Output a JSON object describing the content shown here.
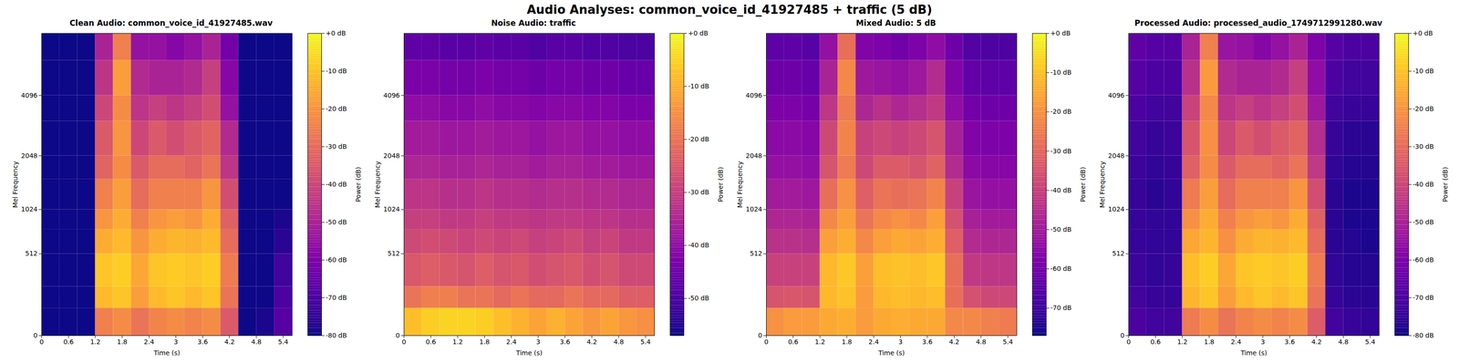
{
  "title": "Audio Analyses: common_voice_id_41927485 + traffic (5 dB)",
  "chart_data": [
    {
      "type": "heatmap",
      "title": "Clean Audio: common_voice_id_41927485.wav",
      "x_label": "Time (s)",
      "y_label": "Mel Frequency",
      "x": [
        0,
        0.4,
        0.8,
        1.2,
        1.6,
        2.0,
        2.4,
        2.8,
        3.2,
        3.6,
        4.0,
        4.4,
        4.8,
        5.2,
        5.6
      ],
      "y": [
        0,
        128,
        256,
        512,
        768,
        1024,
        1536,
        2048,
        3072,
        4096,
        6000,
        8000
      ],
      "xlim": [
        0,
        5.6
      ],
      "ylim": [
        0,
        8000
      ],
      "xticks": [
        0,
        0.6,
        1.2,
        1.8,
        2.4,
        3,
        3.6,
        4.2,
        4.8,
        5.4
      ],
      "yticks": [
        0,
        512,
        1024,
        2048,
        4096
      ],
      "values": [
        [
          -80,
          -80,
          -80,
          -25,
          -22,
          -28,
          -24,
          -22,
          -24,
          -22,
          -35,
          -80,
          -78,
          -68
        ],
        [
          -80,
          -80,
          -80,
          -12,
          -10,
          -18,
          -12,
          -10,
          -12,
          -10,
          -28,
          -80,
          -80,
          -70
        ],
        [
          -80,
          -80,
          -80,
          -10,
          -8,
          -16,
          -10,
          -9,
          -10,
          -8,
          -26,
          -80,
          -80,
          -72
        ],
        [
          -80,
          -80,
          -80,
          -15,
          -12,
          -20,
          -15,
          -13,
          -14,
          -12,
          -30,
          -80,
          -80,
          -76
        ],
        [
          -80,
          -80,
          -80,
          -20,
          -15,
          -25,
          -20,
          -18,
          -20,
          -15,
          -33,
          -80,
          -80,
          -78
        ],
        [
          -80,
          -80,
          -80,
          -25,
          -18,
          -30,
          -25,
          -25,
          -25,
          -20,
          -38,
          -80,
          -80,
          -80
        ],
        [
          -80,
          -80,
          -80,
          -32,
          -22,
          -35,
          -30,
          -30,
          -32,
          -28,
          -45,
          -80,
          -80,
          -80
        ],
        [
          -80,
          -80,
          -80,
          -35,
          -20,
          -40,
          -35,
          -38,
          -35,
          -32,
          -48,
          -80,
          -80,
          -80
        ],
        [
          -80,
          -80,
          -80,
          -40,
          -22,
          -45,
          -42,
          -45,
          -42,
          -38,
          -55,
          -80,
          -80,
          -80
        ],
        [
          -80,
          -80,
          -80,
          -45,
          -18,
          -48,
          -50,
          -50,
          -48,
          -42,
          -58,
          -80,
          -80,
          -80
        ],
        [
          -80,
          -80,
          -80,
          -50,
          -25,
          -55,
          -55,
          -58,
          -55,
          -50,
          -62,
          -80,
          -80,
          -80
        ]
      ],
      "colorbar": {
        "label": "Power (dB)",
        "range": [
          -80,
          0
        ],
        "ticks": [
          {
            "value": 0,
            "label": "+0 dB"
          },
          {
            "value": -10,
            "label": "-10 dB"
          },
          {
            "value": -20,
            "label": "-20 dB"
          },
          {
            "value": -30,
            "label": "-30 dB"
          },
          {
            "value": -40,
            "label": "-40 dB"
          },
          {
            "value": -50,
            "label": "-50 dB"
          },
          {
            "value": -60,
            "label": "-60 dB"
          },
          {
            "value": -70,
            "label": "-70 dB"
          },
          {
            "value": -80,
            "label": "-80 dB"
          }
        ]
      }
    },
    {
      "type": "heatmap",
      "title": "Noise Audio: traffic",
      "x_label": "Time (s)",
      "y_label": "Mel Frequency",
      "x": [
        0,
        0.4,
        0.8,
        1.2,
        1.6,
        2.0,
        2.4,
        2.8,
        3.2,
        3.6,
        4.0,
        4.4,
        4.8,
        5.2,
        5.6
      ],
      "y": [
        0,
        128,
        256,
        512,
        768,
        1024,
        1536,
        2048,
        3072,
        4096,
        6000,
        8000
      ],
      "xlim": [
        0,
        5.6
      ],
      "ylim": [
        0,
        8000
      ],
      "xticks": [
        0,
        0.6,
        1.2,
        1.8,
        2.4,
        3,
        3.6,
        4.2,
        4.8,
        5.4
      ],
      "yticks": [
        0,
        512,
        1024,
        2048,
        4096
      ],
      "values": [
        [
          -8,
          -6,
          -5,
          -5,
          -6,
          -8,
          -10,
          -12,
          -10,
          -12,
          -14,
          -12,
          -14,
          -15
        ],
        [
          -20,
          -18,
          -18,
          -20,
          -20,
          -22,
          -20,
          -22,
          -22,
          -20,
          -22,
          -22,
          -24,
          -24
        ],
        [
          -25,
          -24,
          -25,
          -26,
          -24,
          -26,
          -25,
          -27,
          -26,
          -25,
          -27,
          -26,
          -28,
          -28
        ],
        [
          -28,
          -27,
          -28,
          -29,
          -28,
          -29,
          -28,
          -30,
          -29,
          -28,
          -30,
          -29,
          -31,
          -31
        ],
        [
          -30,
          -30,
          -31,
          -31,
          -30,
          -31,
          -31,
          -32,
          -31,
          -31,
          -32,
          -32,
          -33,
          -33
        ],
        [
          -32,
          -32,
          -33,
          -33,
          -32,
          -33,
          -33,
          -34,
          -33,
          -33,
          -34,
          -34,
          -35,
          -35
        ],
        [
          -35,
          -35,
          -36,
          -36,
          -35,
          -36,
          -36,
          -37,
          -36,
          -36,
          -37,
          -37,
          -38,
          -38
        ],
        [
          -37,
          -37,
          -38,
          -38,
          -37,
          -38,
          -38,
          -39,
          -38,
          -38,
          -39,
          -39,
          -40,
          -40
        ],
        [
          -40,
          -40,
          -41,
          -41,
          -40,
          -41,
          -41,
          -42,
          -41,
          -41,
          -42,
          -42,
          -43,
          -43
        ],
        [
          -43,
          -43,
          -44,
          -44,
          -43,
          -44,
          -44,
          -45,
          -44,
          -44,
          -45,
          -45,
          -46,
          -46
        ],
        [
          -47,
          -47,
          -48,
          -48,
          -47,
          -48,
          -48,
          -49,
          -48,
          -48,
          -49,
          -49,
          -50,
          -50
        ]
      ],
      "colorbar": {
        "label": "Power (dB)",
        "range": [
          -57,
          0
        ],
        "ticks": [
          {
            "value": 0,
            "label": "+0 dB"
          },
          {
            "value": -10,
            "label": "-10 dB"
          },
          {
            "value": -20,
            "label": "-20 dB"
          },
          {
            "value": -30,
            "label": "-30 dB"
          },
          {
            "value": -40,
            "label": "-40 dB"
          },
          {
            "value": -50,
            "label": "-50 dB"
          }
        ]
      }
    },
    {
      "type": "heatmap",
      "title": "Mixed Audio: 5 dB",
      "x_label": "Time (s)",
      "y_label": "Mel Frequency",
      "x": [
        0,
        0.4,
        0.8,
        1.2,
        1.6,
        2.0,
        2.4,
        2.8,
        3.2,
        3.6,
        4.0,
        4.4,
        4.8,
        5.2,
        5.6
      ],
      "y": [
        0,
        128,
        256,
        512,
        768,
        1024,
        1536,
        2048,
        3072,
        4096,
        6000,
        8000
      ],
      "xlim": [
        0,
        5.6
      ],
      "ylim": [
        0,
        8000
      ],
      "xticks": [
        0,
        0.6,
        1.2,
        1.8,
        2.4,
        3,
        3.6,
        4.2,
        4.8,
        5.4
      ],
      "yticks": [
        0,
        512,
        1024,
        2048,
        4096
      ],
      "values": [
        [
          -20,
          -18,
          -18,
          -15,
          -14,
          -18,
          -15,
          -14,
          -15,
          -15,
          -22,
          -22,
          -24,
          -25
        ],
        [
          -35,
          -34,
          -35,
          -12,
          -10,
          -18,
          -12,
          -11,
          -12,
          -11,
          -28,
          -36,
          -38,
          -38
        ],
        [
          -40,
          -40,
          -40,
          -12,
          -9,
          -17,
          -11,
          -10,
          -11,
          -9,
          -28,
          -42,
          -43,
          -43
        ],
        [
          -44,
          -44,
          -45,
          -17,
          -14,
          -22,
          -17,
          -15,
          -16,
          -14,
          -32,
          -46,
          -47,
          -47
        ],
        [
          -47,
          -47,
          -48,
          -22,
          -17,
          -27,
          -22,
          -20,
          -22,
          -17,
          -36,
          -49,
          -50,
          -50
        ],
        [
          -50,
          -50,
          -51,
          -28,
          -20,
          -32,
          -27,
          -28,
          -27,
          -23,
          -40,
          -52,
          -53,
          -53
        ],
        [
          -53,
          -53,
          -54,
          -35,
          -25,
          -38,
          -33,
          -33,
          -35,
          -31,
          -46,
          -55,
          -56,
          -56
        ],
        [
          -55,
          -55,
          -56,
          -38,
          -23,
          -40,
          -38,
          -40,
          -38,
          -35,
          -49,
          -57,
          -58,
          -58
        ],
        [
          -58,
          -58,
          -59,
          -43,
          -25,
          -47,
          -44,
          -47,
          -45,
          -42,
          -54,
          -60,
          -61,
          -61
        ],
        [
          -61,
          -61,
          -62,
          -48,
          -22,
          -51,
          -52,
          -53,
          -51,
          -46,
          -57,
          -63,
          -64,
          -64
        ],
        [
          -64,
          -64,
          -65,
          -53,
          -28,
          -57,
          -58,
          -60,
          -58,
          -54,
          -61,
          -66,
          -67,
          -67
        ]
      ],
      "colorbar": {
        "label": "Power (dB)",
        "range": [
          -77,
          0
        ],
        "ticks": [
          {
            "value": 0,
            "label": "+0 dB"
          },
          {
            "value": -10,
            "label": "-10 dB"
          },
          {
            "value": -20,
            "label": "-20 dB"
          },
          {
            "value": -30,
            "label": "-30 dB"
          },
          {
            "value": -40,
            "label": "-40 dB"
          },
          {
            "value": -50,
            "label": "-50 dB"
          },
          {
            "value": -60,
            "label": "-60 dB"
          },
          {
            "value": -70,
            "label": "-70 dB"
          }
        ]
      }
    },
    {
      "type": "heatmap",
      "title": "Processed Audio: processed_audio_1749712991280.wav",
      "x_label": "Time (s)",
      "y_label": "Mel Frequency",
      "x": [
        0,
        0.4,
        0.8,
        1.2,
        1.6,
        2.0,
        2.4,
        2.8,
        3.2,
        3.6,
        4.0,
        4.4,
        4.8,
        5.2,
        5.6
      ],
      "y": [
        0,
        128,
        256,
        512,
        768,
        1024,
        1536,
        2048,
        3072,
        4096,
        6000,
        8000
      ],
      "xlim": [
        0,
        5.6
      ],
      "ylim": [
        0,
        8000
      ],
      "xticks": [
        0,
        0.6,
        1.2,
        1.8,
        2.4,
        3,
        3.6,
        4.2,
        4.8,
        5.4
      ],
      "yticks": [
        0,
        512,
        1024,
        2048,
        4096
      ],
      "values": [
        [
          -70,
          -72,
          -72,
          -26,
          -22,
          -28,
          -24,
          -22,
          -24,
          -22,
          -34,
          -72,
          -74,
          -75
        ],
        [
          -72,
          -74,
          -74,
          -13,
          -10,
          -18,
          -12,
          -10,
          -12,
          -10,
          -28,
          -74,
          -76,
          -76
        ],
        [
          -73,
          -75,
          -74,
          -11,
          -8,
          -16,
          -10,
          -9,
          -10,
          -8,
          -26,
          -75,
          -77,
          -77
        ],
        [
          -74,
          -75,
          -75,
          -16,
          -13,
          -21,
          -15,
          -13,
          -14,
          -12,
          -30,
          -76,
          -77,
          -78
        ],
        [
          -74,
          -75,
          -75,
          -21,
          -15,
          -25,
          -20,
          -18,
          -20,
          -15,
          -33,
          -76,
          -78,
          -78
        ],
        [
          -74,
          -76,
          -75,
          -26,
          -18,
          -30,
          -25,
          -25,
          -25,
          -20,
          -38,
          -76,
          -78,
          -78
        ],
        [
          -73,
          -75,
          -74,
          -33,
          -22,
          -35,
          -30,
          -30,
          -32,
          -28,
          -44,
          -75,
          -77,
          -77
        ],
        [
          -72,
          -74,
          -73,
          -36,
          -21,
          -40,
          -35,
          -38,
          -35,
          -32,
          -47,
          -74,
          -76,
          -76
        ],
        [
          -70,
          -72,
          -72,
          -41,
          -23,
          -45,
          -42,
          -45,
          -42,
          -38,
          -53,
          -72,
          -74,
          -74
        ],
        [
          -68,
          -70,
          -70,
          -46,
          -19,
          -48,
          -50,
          -50,
          -48,
          -42,
          -56,
          -70,
          -72,
          -72
        ],
        [
          -66,
          -68,
          -68,
          -50,
          -25,
          -54,
          -55,
          -58,
          -55,
          -50,
          -60,
          -68,
          -70,
          -70
        ]
      ],
      "colorbar": {
        "label": "Power (dB)",
        "range": [
          -80,
          0
        ],
        "ticks": [
          {
            "value": 0,
            "label": "+0 dB"
          },
          {
            "value": -10,
            "label": "-10 dB"
          },
          {
            "value": -20,
            "label": "-20 dB"
          },
          {
            "value": -30,
            "label": "-30 dB"
          },
          {
            "value": -40,
            "label": "-40 dB"
          },
          {
            "value": -50,
            "label": "-50 dB"
          },
          {
            "value": -60,
            "label": "-60 dB"
          },
          {
            "value": -70,
            "label": "-70 dB"
          },
          {
            "value": -80,
            "label": "-80 dB"
          }
        ]
      }
    }
  ]
}
